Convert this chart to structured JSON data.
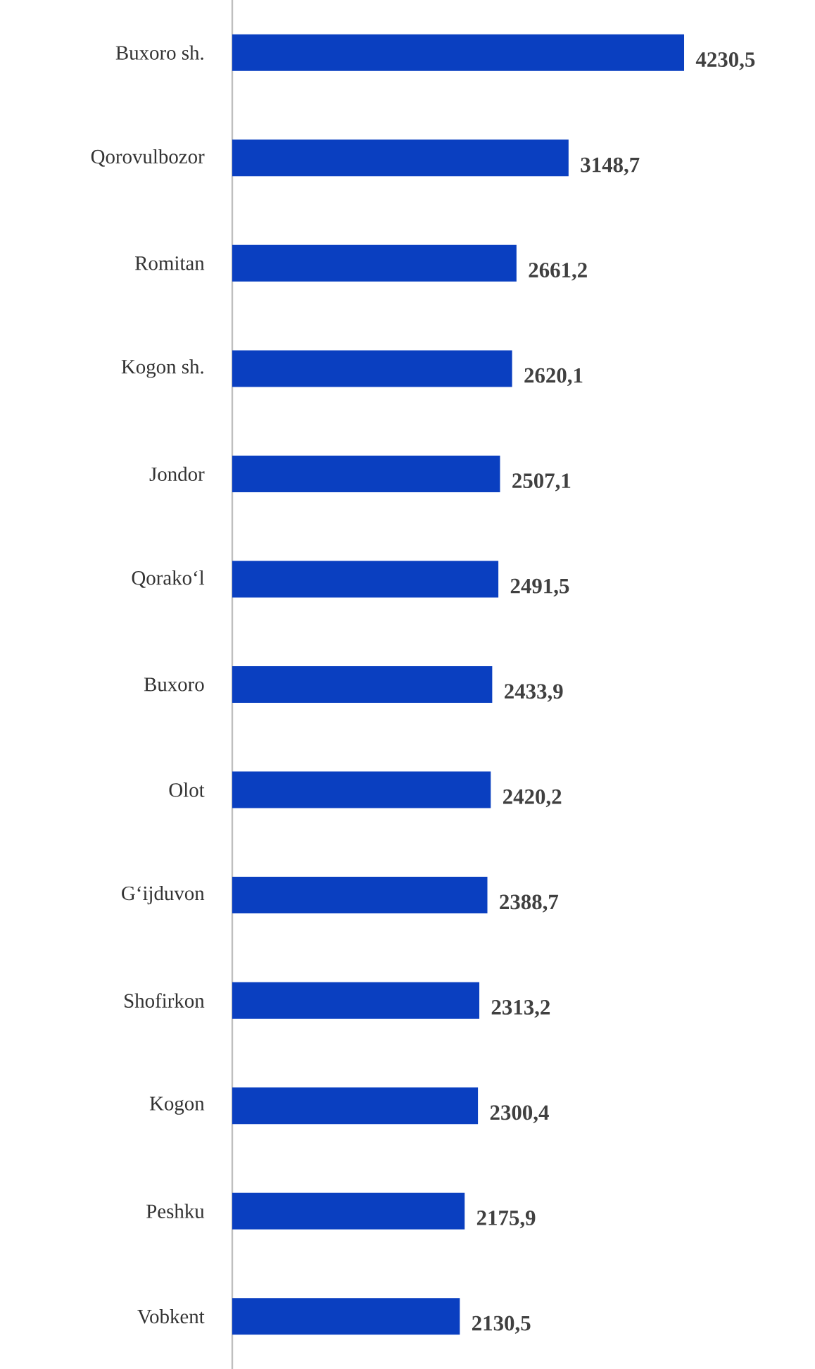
{
  "chart_data": {
    "type": "bar",
    "orientation": "horizontal",
    "color": "#0a3fc0",
    "categories": [
      "Buxoro sh.",
      "Qorovulbozor",
      "Romitan",
      "Kogon sh.",
      "Jondor",
      "Qorako‘l",
      "Buxoro",
      "Olot",
      "G‘ijduvon",
      "Shofirkon",
      "Kogon",
      "Peshku",
      "Vobkent"
    ],
    "values": [
      4230.5,
      3148.7,
      2661.2,
      2620.1,
      2507.1,
      2491.5,
      2433.9,
      2420.2,
      2388.7,
      2313.2,
      2300.4,
      2175.9,
      2130.5
    ],
    "value_labels": [
      "4230,5",
      "3148,7",
      "2661,2",
      "2620,1",
      "2507,1",
      "2491,5",
      "2433,9",
      "2420,2",
      "2388,7",
      "2313,2",
      "2300,4",
      "2175,9",
      "2130,5"
    ]
  }
}
